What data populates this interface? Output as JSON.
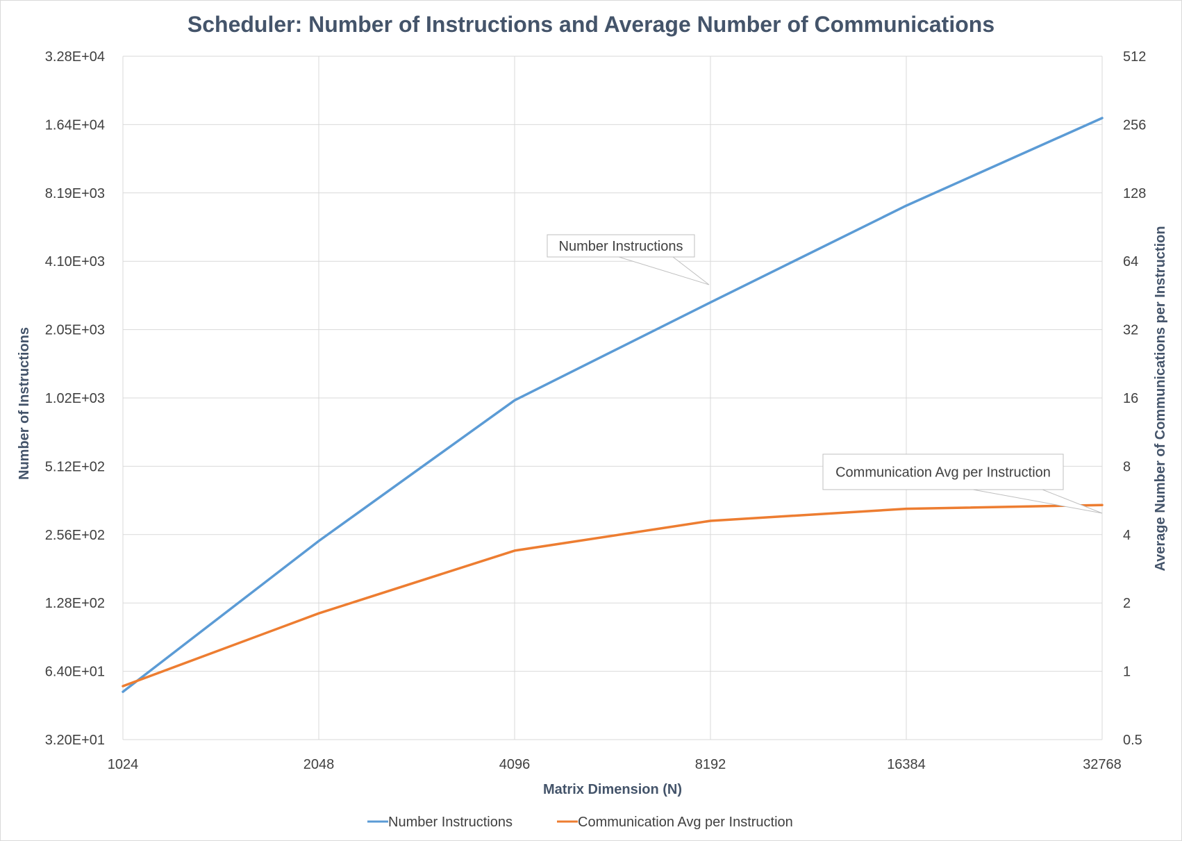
{
  "chart_data": {
    "type": "line",
    "title": "Scheduler: Number of Instructions and Average Number of Communications",
    "xlabel": "Matrix Dimension (N)",
    "ylabel": "Number of Instructions",
    "y2label": "Average Number of Communications per Instruction",
    "x_scale": "log2",
    "y_scale": "log2",
    "y2_scale": "log2",
    "categories": [
      "1024",
      "2048",
      "4096",
      "8192",
      "16384",
      "32768"
    ],
    "x": [
      1024,
      2048,
      4096,
      8192,
      16384,
      32768
    ],
    "ylim": [
      32,
      32768
    ],
    "y2lim": [
      0.5,
      512
    ],
    "y_ticks": [
      32,
      64,
      128,
      256,
      512,
      1024,
      2048,
      4096,
      8192,
      16384,
      32768
    ],
    "y_tick_labels": [
      "3.20E+01",
      "6.40E+01",
      "1.28E+02",
      "2.56E+02",
      "5.12E+02",
      "1.02E+03",
      "2.05E+03",
      "4.10E+03",
      "8.19E+03",
      "1.64E+04",
      "3.28E+04"
    ],
    "y2_ticks": [
      0.5,
      1,
      2,
      4,
      8,
      16,
      32,
      64,
      128,
      256,
      512
    ],
    "y2_tick_labels": [
      "0.5",
      "1",
      "2",
      "4",
      "8",
      "16",
      "32",
      "64",
      "128",
      "256",
      "512"
    ],
    "grid": true,
    "legend_position": "bottom",
    "series": [
      {
        "name": "Number Instructions",
        "axis": "left",
        "color": "#5b9bd5",
        "values": [
          52,
          240,
          1000,
          2700,
          7200,
          17500
        ]
      },
      {
        "name": "Communication Avg per Instruction",
        "axis": "right",
        "color": "#ed7d31",
        "values": [
          0.86,
          1.8,
          3.4,
          4.6,
          5.2,
          5.4
        ]
      }
    ],
    "annotations": [
      {
        "text": "Number Instructions",
        "series": 0
      },
      {
        "text": "Communication Avg per Instruction",
        "series": 1
      }
    ]
  }
}
